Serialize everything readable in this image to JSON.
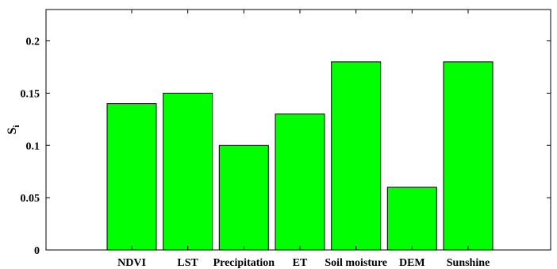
{
  "chart_data": {
    "type": "bar",
    "categories": [
      "NDVI",
      "LST",
      "Precipitation",
      "ET",
      "Soil moisture",
      "DEM",
      "Sunshine"
    ],
    "values": [
      0.14,
      0.15,
      0.1,
      0.13,
      0.18,
      0.06,
      0.18
    ],
    "ylabel_main": "S",
    "ylabel_sub": "i",
    "ylim": [
      0,
      0.23
    ],
    "yticks": [
      0,
      0.05,
      0.1,
      0.15,
      0.2
    ],
    "ytick_labels": [
      "0",
      "0.05",
      "0.1",
      "0.15",
      "0.2"
    ],
    "bar_color": "#00ff00",
    "grid": false
  }
}
